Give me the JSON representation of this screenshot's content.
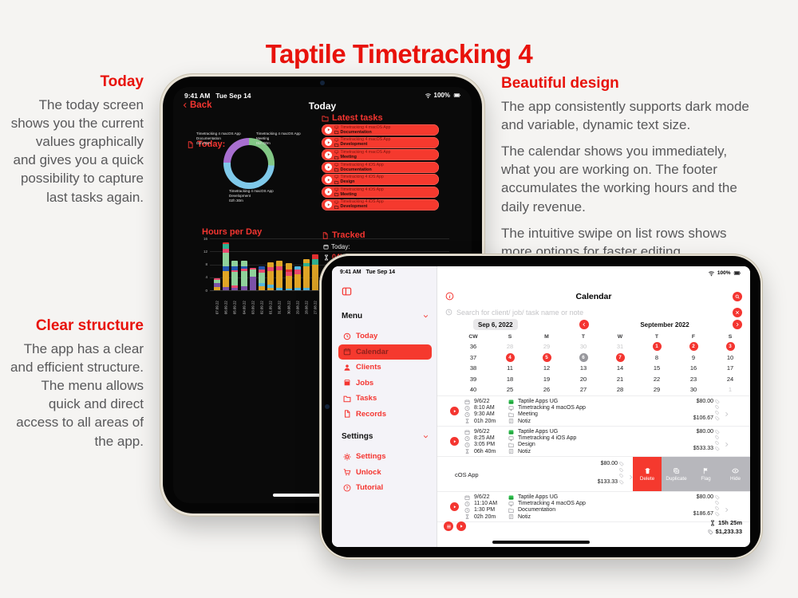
{
  "page_title": "Taptile Timetracking 4",
  "features": {
    "today": {
      "heading": "Today",
      "body": "The today screen shows you the current values graphically and gives you a quick possibility to capture last tasks again."
    },
    "structure": {
      "heading": "Clear structure",
      "line1": "The app has a clear and efficient structure.",
      "line2": "The menu allows quick and direct access to all areas of the app."
    },
    "design": {
      "heading": "Beautiful design",
      "p1": "The app consistently supports dark mode and variable, dynamic text size.",
      "p2": "The calendar shows you immediately, what you are working on. The footer accumulates the working hours and the daily revenue.",
      "p3": "The intuitive swipe on list rows shows more options for faster editing."
    }
  },
  "status_bar": {
    "time": "9:41 AM",
    "date": "Tue Sep 14",
    "battery": "100%"
  },
  "dark_ipad": {
    "back_label": "Back",
    "nav_title": "Today",
    "today_label": "Today:",
    "latest_tasks_label": "Latest tasks",
    "latest_tasks": [
      {
        "job": "Timetracking 4 macOS App",
        "task": "Documentation"
      },
      {
        "job": "Timetracking 4 macOS App",
        "task": "Development"
      },
      {
        "job": "Timetracking 4 macOS App",
        "task": "Meeting"
      },
      {
        "job": "Timetracking 4 iOS App",
        "task": "Documentation"
      },
      {
        "job": "Timetracking 4 iOS App",
        "task": "Design"
      },
      {
        "job": "Timetracking 4 iOS App",
        "task": "Meeting"
      },
      {
        "job": "Timetracking 4 iOS App",
        "task": "Development"
      }
    ],
    "hours_label": "Hours per Day",
    "tracked": {
      "label": "Tracked",
      "today_label": "Today:",
      "time": "04h 30m"
    }
  },
  "front_ipad": {
    "sidebar": {
      "menu_label": "Menu",
      "items": [
        {
          "label": "Today",
          "icon": "clock",
          "selected": false
        },
        {
          "label": "Calendar",
          "icon": "cal",
          "selected": true
        },
        {
          "label": "Clients",
          "icon": "person",
          "selected": false
        },
        {
          "label": "Jobs",
          "icon": "box",
          "selected": false
        },
        {
          "label": "Tasks",
          "icon": "folder",
          "selected": false
        },
        {
          "label": "Records",
          "icon": "doc",
          "selected": false
        }
      ],
      "settings_label": "Settings",
      "settings_items": [
        {
          "label": "Settings",
          "icon": "gear",
          "selected": false
        },
        {
          "label": "Unlock",
          "icon": "cart",
          "selected": false
        },
        {
          "label": "Tutorial",
          "icon": "help",
          "selected": false
        }
      ]
    },
    "header_title": "Calendar",
    "search_placeholder": "Search for client/ job/ task name or note",
    "date_chip": "Sep 6, 2022",
    "month_label": "September 2022",
    "calendar": {
      "headers": [
        "CW",
        "S",
        "M",
        "T",
        "W",
        "T",
        "F",
        "S"
      ],
      "weeks": [
        {
          "cw": "36",
          "days": [
            [
              "28",
              "m"
            ],
            [
              "29",
              "m"
            ],
            [
              "30",
              "m"
            ],
            [
              "31",
              "m"
            ],
            [
              "1",
              "b"
            ],
            [
              "2",
              "b"
            ],
            [
              "3",
              "b"
            ]
          ]
        },
        {
          "cw": "37",
          "days": [
            [
              "4",
              "b"
            ],
            [
              "5",
              "b"
            ],
            [
              "6",
              "s"
            ],
            [
              "7",
              "b"
            ],
            [
              "8",
              "n"
            ],
            [
              "9",
              "n"
            ],
            [
              "10",
              "n"
            ]
          ]
        },
        {
          "cw": "38",
          "days": [
            [
              "11",
              "n"
            ],
            [
              "12",
              "n"
            ],
            [
              "13",
              "n"
            ],
            [
              "14",
              "n"
            ],
            [
              "15",
              "n"
            ],
            [
              "16",
              "n"
            ],
            [
              "17",
              "n"
            ]
          ]
        },
        {
          "cw": "39",
          "days": [
            [
              "18",
              "n"
            ],
            [
              "19",
              "n"
            ],
            [
              "20",
              "n"
            ],
            [
              "21",
              "n"
            ],
            [
              "22",
              "n"
            ],
            [
              "23",
              "n"
            ],
            [
              "24",
              "n"
            ]
          ]
        },
        {
          "cw": "40",
          "days": [
            [
              "25",
              "n"
            ],
            [
              "26",
              "n"
            ],
            [
              "27",
              "n"
            ],
            [
              "28",
              "n"
            ],
            [
              "29",
              "n"
            ],
            [
              "30",
              "n"
            ],
            [
              "1",
              "m"
            ]
          ]
        }
      ]
    },
    "records": [
      {
        "date": "9/6/22",
        "start": "8:10 AM",
        "end": "9:30 AM",
        "duration": "01h 20m",
        "client": "Taptile Apps UG",
        "job": "Timetracking 4 macOS App",
        "task": "Meeting",
        "note": "Notiz",
        "rate": "$80.00",
        "total": "$106.67"
      },
      {
        "date": "9/6/22",
        "start": "8:25 AM",
        "end": "3:05 PM",
        "duration": "06h 40m",
        "client": "Taptile Apps UG",
        "job": "Timetracking 4 iOS App",
        "task": "Design",
        "note": "Notiz",
        "rate": "$80.00",
        "total": "$533.33"
      },
      {
        "swiped": true,
        "partial_text": "cOS App",
        "rate": "$80.00",
        "total": "$133.33",
        "actions": [
          "Delete",
          "Duplicate",
          "Flag",
          "Hide"
        ]
      },
      {
        "date": "9/6/22",
        "start": "11:10 AM",
        "end": "1:30 PM",
        "duration": "02h 20m",
        "client": "Taptile Apps UG",
        "job": "Timetracking 4 macOS App",
        "task": "Documentation",
        "note": "Notiz",
        "rate": "$80.00",
        "total": "$186.67"
      }
    ],
    "footer": {
      "total_duration": "15h 25m",
      "total_amount": "$1,233.33"
    }
  },
  "chart_data": [
    {
      "type": "pie",
      "variant": "donut",
      "title": "Today",
      "slices": [
        {
          "job": "Timetracking 4 macOS App",
          "task": "Meeting",
          "time": "01h 00m",
          "value": 1.0,
          "color": "#82c785",
          "start_deg": 0,
          "end_deg": 95
        },
        {
          "job": "Timetracking 4 macOS App",
          "task": "Development",
          "time": "02h 30m",
          "value": 2.5,
          "color": "#7fc9ea",
          "start_deg": 95,
          "end_deg": 272
        },
        {
          "job": "Timetracking 4 macOS App",
          "task": "Documentation",
          "time": "01h 00m",
          "value": 1.0,
          "color": "#a86fd0",
          "start_deg": 272,
          "end_deg": 360
        }
      ]
    },
    {
      "type": "bar",
      "stacked": true,
      "title": "Hours per Day",
      "ylim": [
        0,
        16
      ],
      "yticks": [
        16,
        12,
        8,
        4,
        0
      ],
      "categories": [
        "07.09.22",
        "06.09.22",
        "05.09.22",
        "04.09.22",
        "03.09.22",
        "02.09.22",
        "01.09.22",
        "31.08.22",
        "30.08.22",
        "29.08.22",
        "28.08.22",
        "27.08.22"
      ],
      "bars": [
        [
          [
            "#e0a526",
            1.0
          ],
          [
            "#7b52a8",
            1.2
          ],
          [
            "#8fd19a",
            1.0
          ],
          [
            "#e8486e",
            0.6
          ]
        ],
        [
          [
            "#7b52a8",
            1.0
          ],
          [
            "#e0a526",
            5.0
          ],
          [
            "#2456b0",
            1.5
          ],
          [
            "#8fd19a",
            4.0
          ],
          [
            "#e8486e",
            1.2
          ],
          [
            "#30b090",
            1.5
          ],
          [
            "#e03030",
            0.5
          ]
        ],
        [
          [
            "#7b52a8",
            0.8
          ],
          [
            "#e8486e",
            0.6
          ],
          [
            "#8fd19a",
            4.2
          ],
          [
            "#e8486e",
            0.6
          ],
          [
            "#2456b0",
            1.3
          ],
          [
            "#8fd19a",
            1.5
          ]
        ],
        [
          [
            "#7b52a8",
            1.2
          ],
          [
            "#8fd19a",
            4.8
          ],
          [
            "#e8486e",
            0.7
          ],
          [
            "#2456b0",
            0.8
          ],
          [
            "#8fd19a",
            1.5
          ]
        ],
        [
          [
            "#7b52a8",
            4.2
          ],
          [
            "#8fd19a",
            2.3
          ],
          [
            "#e8486e",
            0.5
          ]
        ],
        [
          [
            "#e0a526",
            1.2
          ],
          [
            "#51b7e0",
            1.0
          ],
          [
            "#8fd19a",
            3.3
          ],
          [
            "#e8486e",
            1.0
          ],
          [
            "#2456b0",
            0.8
          ]
        ],
        [
          [
            "#e0a526",
            0.8
          ],
          [
            "#51b7e0",
            1.0
          ],
          [
            "#e0a526",
            4.0
          ],
          [
            "#e8486e",
            1.4
          ],
          [
            "#e0a526",
            1.3
          ]
        ],
        [
          [
            "#51b7e0",
            0.8
          ],
          [
            "#e0a526",
            5.4
          ],
          [
            "#e8486e",
            1.3
          ],
          [
            "#e0a526",
            1.5
          ]
        ],
        [
          [
            "#51b7e0",
            0.6
          ],
          [
            "#e0a526",
            3.8
          ],
          [
            "#e8486e",
            1.2
          ],
          [
            "#e03030",
            0.8
          ],
          [
            "#e0a526",
            2.0
          ]
        ],
        [
          [
            "#51b7e0",
            0.8
          ],
          [
            "#e0a526",
            4.2
          ],
          [
            "#e8486e",
            1.4
          ],
          [
            "#51b7e0",
            0.9
          ]
        ],
        [
          [
            "#51b7e0",
            0.7
          ],
          [
            "#e0a526",
            6.8
          ],
          [
            "#30b090",
            0.9
          ],
          [
            "#e0a526",
            1.1
          ]
        ],
        [
          [
            "#e0a526",
            8.0
          ],
          [
            "#30b090",
            1.5
          ],
          [
            "#e03030",
            1.5
          ]
        ]
      ]
    }
  ],
  "colors": {
    "accent_red": "#f43530",
    "heading_red": "#e8120b",
    "body_gray": "#58585a",
    "client_green": "#2fbf4f"
  }
}
